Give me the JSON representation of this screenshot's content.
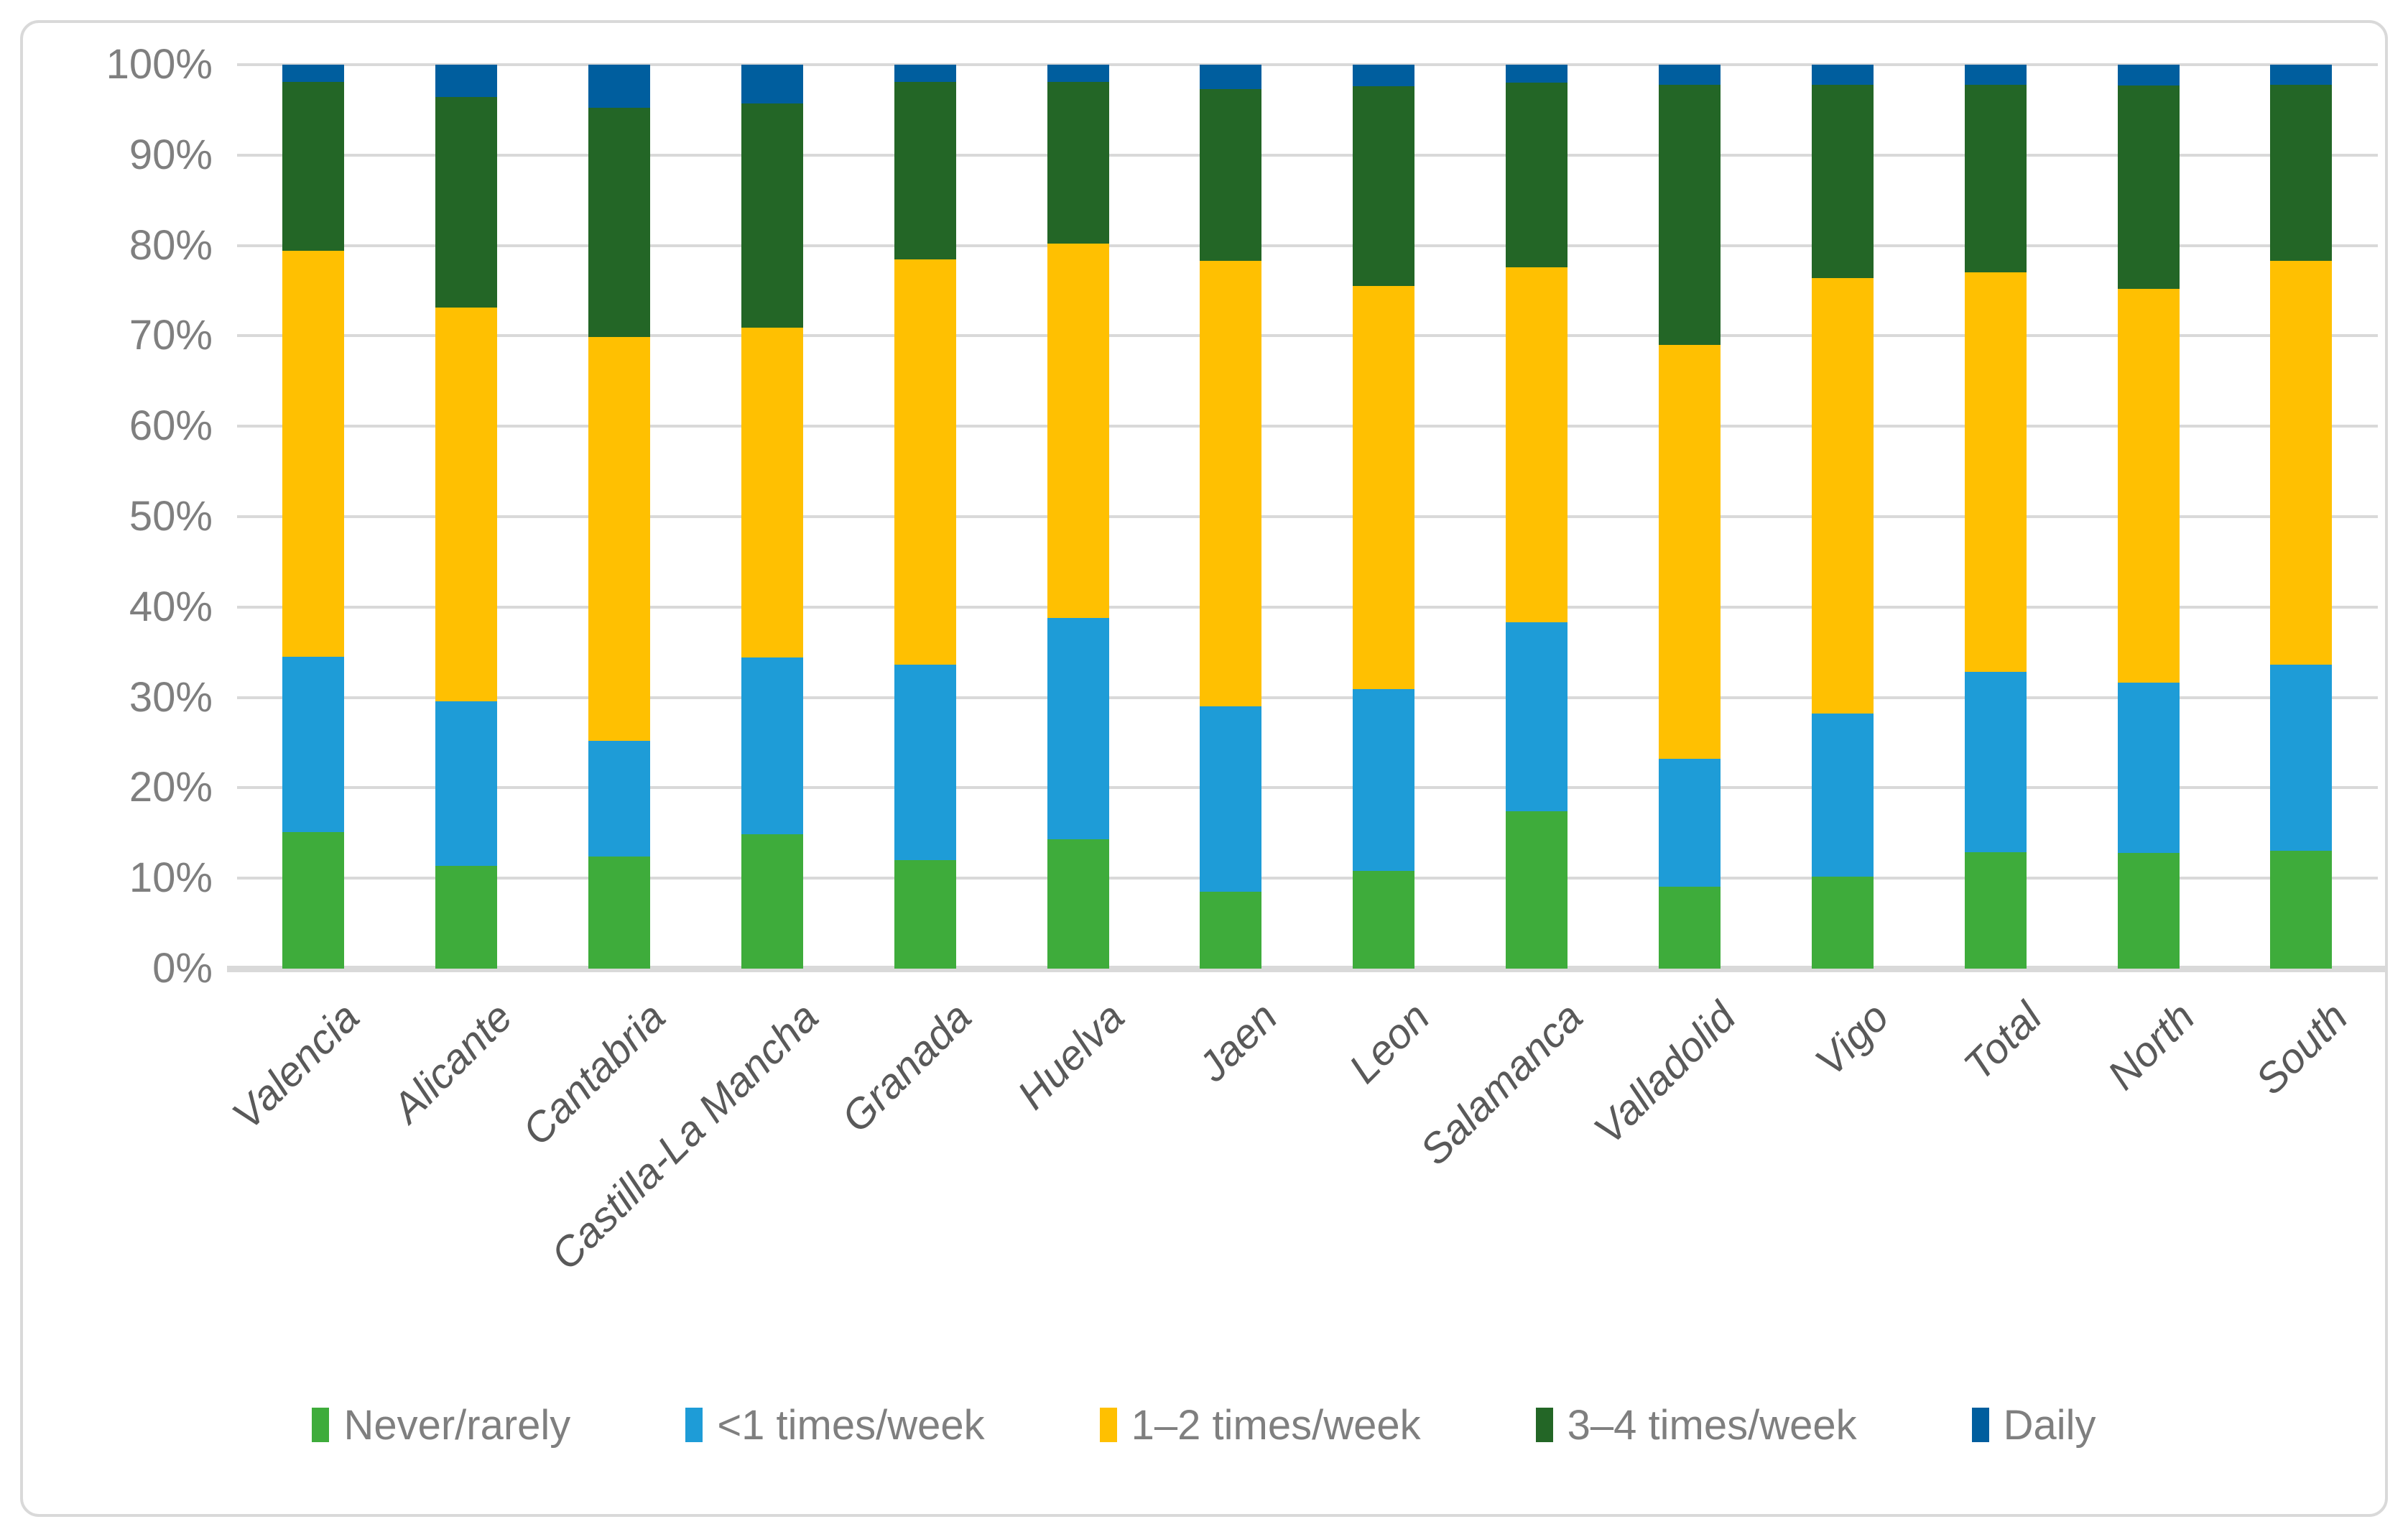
{
  "chart_data": {
    "type": "bar",
    "variant": "stacked-100-percent-column",
    "title": "",
    "xlabel": "",
    "ylabel": "",
    "ylim": [
      0,
      100
    ],
    "grid": true,
    "legend_position": "bottom",
    "y_ticks": [
      "0%",
      "10%",
      "20%",
      "30%",
      "40%",
      "50%",
      "60%",
      "70%",
      "80%",
      "90%",
      "100%"
    ],
    "categories": [
      "Valencia",
      "Alicante",
      "Cantabria",
      "Castilla-La Mancha",
      "Granada",
      "Huelva",
      "Jaen",
      "Leon",
      "Salamanca",
      "Valladolid",
      "Vigo",
      "Total",
      "North",
      "South"
    ],
    "series": [
      {
        "name": "Never/rarely",
        "color": "#3EAC3B",
        "values": [
          15.1,
          11.4,
          12.4,
          14.9,
          12.0,
          14.3,
          8.5,
          10.8,
          17.4,
          9.1,
          10.2,
          12.9,
          12.8,
          13.0
        ]
      },
      {
        "name": "<1 times/week",
        "color": "#1E9CD7",
        "values": [
          19.4,
          18.2,
          12.8,
          19.5,
          21.6,
          24.5,
          20.5,
          20.1,
          20.9,
          14.1,
          18.0,
          19.9,
          18.8,
          20.6
        ]
      },
      {
        "name": "1–2 times/week",
        "color": "#FFC001",
        "values": [
          44.9,
          43.5,
          44.7,
          36.5,
          44.9,
          41.4,
          49.3,
          44.6,
          39.3,
          45.8,
          48.2,
          44.2,
          43.6,
          44.7
        ]
      },
      {
        "name": "3–4 times/week",
        "color": "#236626",
        "values": [
          18.7,
          23.3,
          25.3,
          24.8,
          19.6,
          17.9,
          19.0,
          22.1,
          20.4,
          28.8,
          21.4,
          20.8,
          22.5,
          19.5
        ]
      },
      {
        "name": "Daily",
        "color": "#005E9E",
        "values": [
          1.9,
          3.6,
          4.8,
          4.3,
          1.9,
          1.9,
          2.7,
          2.4,
          2.0,
          2.2,
          2.2,
          2.2,
          2.3,
          2.2
        ]
      }
    ]
  },
  "style": {
    "gridline_color": "#D9D9D9",
    "border_color": "#D9D9D9",
    "y_label_color": "#7F7F7F",
    "x_label_color": "#595959",
    "legend_text_color": "#7F7F7F",
    "background_color": "#FFFFFF"
  }
}
